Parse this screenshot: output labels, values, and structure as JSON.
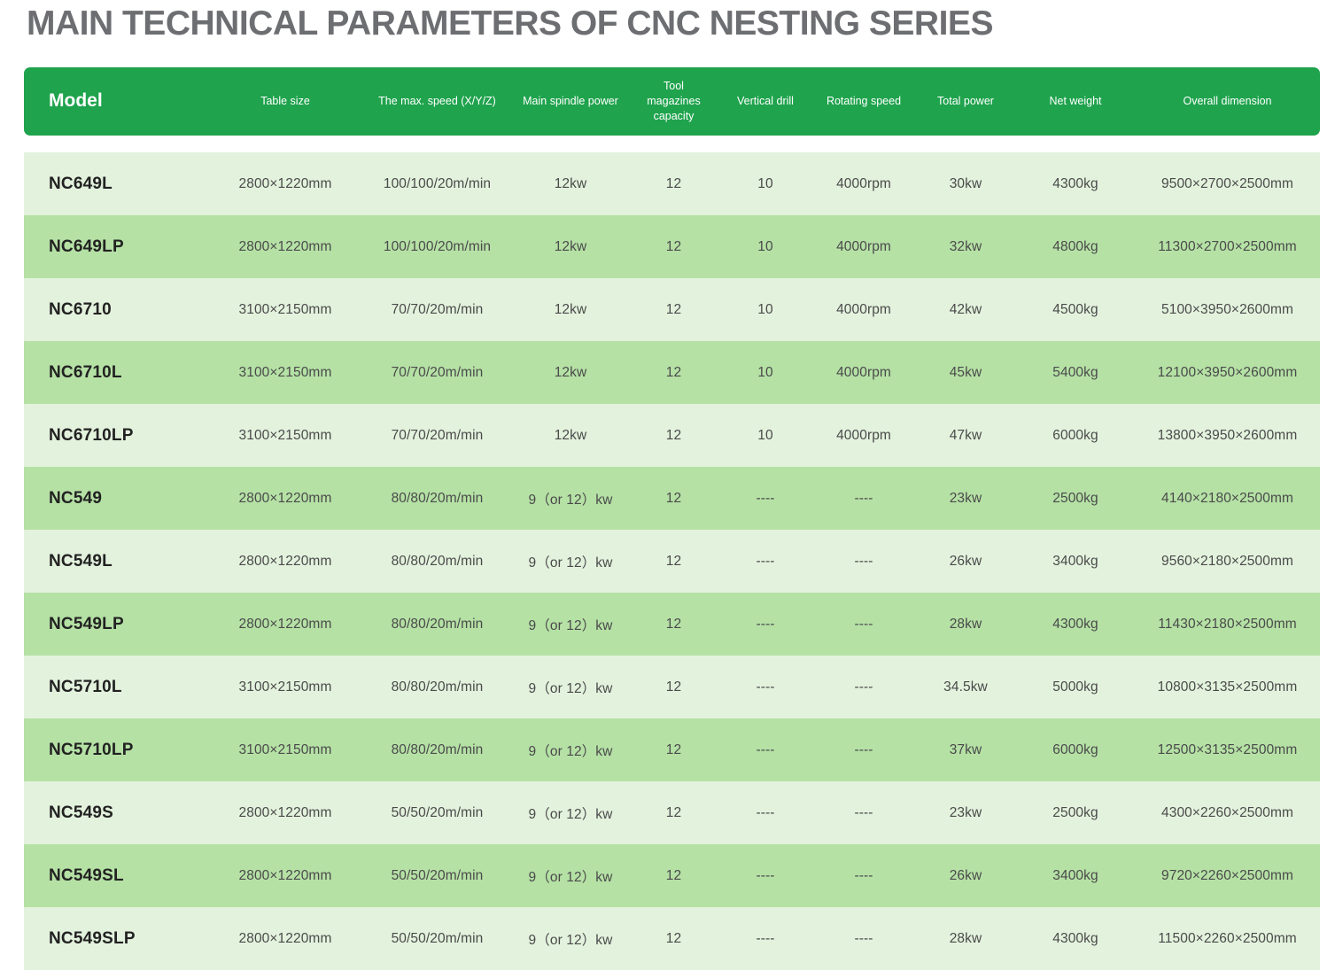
{
  "page_title": "MAIN TECHNICAL PARAMETERS OF CNC NESTING SERIES",
  "colors": {
    "header_bg": "#1FA34D",
    "row_light": "#E3F2DD",
    "row_medium": "#B5E1A5",
    "title_text": "#6D6E71",
    "header_text": "#FFFFFF",
    "model_text": "#222222",
    "value_text": "#4A4A4A"
  },
  "table": {
    "columns": [
      {
        "key": "model",
        "label": "Model"
      },
      {
        "key": "table_size",
        "label": "Table size"
      },
      {
        "key": "max_speed",
        "label": "The max. speed (X/Y/Z)"
      },
      {
        "key": "spindle_power",
        "label": "Main spindle power"
      },
      {
        "key": "tool_capacity",
        "label": "Tool magazines capacity"
      },
      {
        "key": "vertical_drill",
        "label": "Vertical drill"
      },
      {
        "key": "rotating_speed",
        "label": "Rotating speed"
      },
      {
        "key": "total_power",
        "label": "Total power"
      },
      {
        "key": "net_weight",
        "label": "Net weight"
      },
      {
        "key": "overall_dimension",
        "label": "Overall dimension"
      }
    ],
    "rows": [
      [
        "NC649L",
        "2800×1220mm",
        "100/100/20m/min",
        "12kw",
        "12",
        "10",
        "4000rpm",
        "30kw",
        "4300kg",
        "9500×2700×2500mm"
      ],
      [
        "NC649LP",
        "2800×1220mm",
        "100/100/20m/min",
        "12kw",
        "12",
        "10",
        "4000rpm",
        "32kw",
        "4800kg",
        "11300×2700×2500mm"
      ],
      [
        "NC6710",
        "3100×2150mm",
        "70/70/20m/min",
        "12kw",
        "12",
        "10",
        "4000rpm",
        "42kw",
        "4500kg",
        "5100×3950×2600mm"
      ],
      [
        "NC6710L",
        "3100×2150mm",
        "70/70/20m/min",
        "12kw",
        "12",
        "10",
        "4000rpm",
        "45kw",
        "5400kg",
        "12100×3950×2600mm"
      ],
      [
        "NC6710LP",
        "3100×2150mm",
        "70/70/20m/min",
        "12kw",
        "12",
        "10",
        "4000rpm",
        "47kw",
        "6000kg",
        "13800×3950×2600mm"
      ],
      [
        "NC549",
        "2800×1220mm",
        "80/80/20m/min",
        "9（or 12）kw",
        "12",
        "----",
        "----",
        "23kw",
        "2500kg",
        "4140×2180×2500mm"
      ],
      [
        "NC549L",
        "2800×1220mm",
        "80/80/20m/min",
        "9（or 12）kw",
        "12",
        "----",
        "----",
        "26kw",
        "3400kg",
        "9560×2180×2500mm"
      ],
      [
        "NC549LP",
        "2800×1220mm",
        "80/80/20m/min",
        "9（or 12）kw",
        "12",
        "----",
        "----",
        "28kw",
        "4300kg",
        "11430×2180×2500mm"
      ],
      [
        "NC5710L",
        "3100×2150mm",
        "80/80/20m/min",
        "9（or 12）kw",
        "12",
        "----",
        "----",
        "34.5kw",
        "5000kg",
        "10800×3135×2500mm"
      ],
      [
        "NC5710LP",
        "3100×2150mm",
        "80/80/20m/min",
        "9（or 12）kw",
        "12",
        "----",
        "----",
        "37kw",
        "6000kg",
        "12500×3135×2500mm"
      ],
      [
        "NC549S",
        "2800×1220mm",
        "50/50/20m/min",
        "9（or 12）kw",
        "12",
        "----",
        "----",
        "23kw",
        "2500kg",
        "4300×2260×2500mm"
      ],
      [
        "NC549SL",
        "2800×1220mm",
        "50/50/20m/min",
        "9（or 12）kw",
        "12",
        "----",
        "----",
        "26kw",
        "3400kg",
        "9720×2260×2500mm"
      ],
      [
        "NC549SLP",
        "2800×1220mm",
        "50/50/20m/min",
        "9（or 12）kw",
        "12",
        "----",
        "----",
        "28kw",
        "4300kg",
        "11500×2260×2500mm"
      ]
    ]
  }
}
